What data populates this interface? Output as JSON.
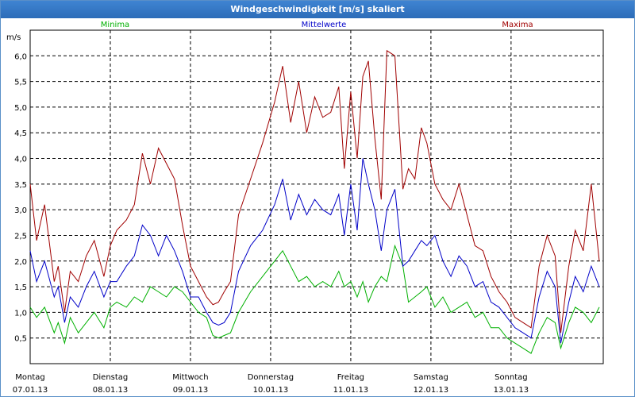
{
  "window": {
    "title": "Windgeschwindigkeit [m/s] skaliert"
  },
  "colors": {
    "min": "#00b000",
    "mean": "#0000c8",
    "max": "#a00000",
    "grid": "#000000",
    "title_bar": "#2f74c4"
  },
  "chart_data": {
    "type": "line",
    "title": "Windgeschwindigkeit [m/s] skaliert",
    "ylabel": "m/s",
    "ylim": [
      0,
      6.5
    ],
    "yticks": [
      "0,5",
      "1,0",
      "1,5",
      "2,0",
      "2,5",
      "3,0",
      "3,5",
      "4,0",
      "4,5",
      "5,0",
      "5,5",
      "6,0"
    ],
    "xlim": [
      0,
      7.15
    ],
    "days": [
      {
        "weekday": "Montag",
        "date": "07.01.13"
      },
      {
        "weekday": "Dienstag",
        "date": "08.01.13"
      },
      {
        "weekday": "Mittwoch",
        "date": "09.01.13"
      },
      {
        "weekday": "Donnerstag",
        "date": "10.01.13"
      },
      {
        "weekday": "Freitag",
        "date": "11.01.13"
      },
      {
        "weekday": "Samstag",
        "date": "12.01.13"
      },
      {
        "weekday": "Sonntag",
        "date": "13.01.13"
      }
    ],
    "grid": true,
    "legend_position": "top",
    "series": [
      {
        "name": "Minima",
        "color_key": "min",
        "points": [
          [
            0.0,
            1.1
          ],
          [
            0.08,
            0.9
          ],
          [
            0.18,
            1.1
          ],
          [
            0.3,
            0.6
          ],
          [
            0.35,
            0.8
          ],
          [
            0.43,
            0.4
          ],
          [
            0.5,
            0.9
          ],
          [
            0.6,
            0.6
          ],
          [
            0.7,
            0.8
          ],
          [
            0.8,
            1.0
          ],
          [
            0.92,
            0.7
          ],
          [
            1.0,
            1.1
          ],
          [
            1.08,
            1.2
          ],
          [
            1.2,
            1.1
          ],
          [
            1.3,
            1.3
          ],
          [
            1.4,
            1.2
          ],
          [
            1.5,
            1.5
          ],
          [
            1.6,
            1.4
          ],
          [
            1.7,
            1.3
          ],
          [
            1.8,
            1.5
          ],
          [
            1.9,
            1.4
          ],
          [
            2.0,
            1.2
          ],
          [
            2.1,
            1.0
          ],
          [
            2.2,
            0.9
          ],
          [
            2.28,
            0.55
          ],
          [
            2.35,
            0.5
          ],
          [
            2.42,
            0.55
          ],
          [
            2.5,
            0.6
          ],
          [
            2.6,
            1.0
          ],
          [
            2.75,
            1.4
          ],
          [
            2.9,
            1.7
          ],
          [
            3.05,
            2.0
          ],
          [
            3.15,
            2.2
          ],
          [
            3.25,
            1.9
          ],
          [
            3.35,
            1.6
          ],
          [
            3.45,
            1.7
          ],
          [
            3.55,
            1.5
          ],
          [
            3.65,
            1.6
          ],
          [
            3.75,
            1.5
          ],
          [
            3.85,
            1.8
          ],
          [
            3.92,
            1.5
          ],
          [
            4.0,
            1.6
          ],
          [
            4.08,
            1.3
          ],
          [
            4.15,
            1.6
          ],
          [
            4.22,
            1.2
          ],
          [
            4.3,
            1.5
          ],
          [
            4.38,
            1.7
          ],
          [
            4.45,
            1.6
          ],
          [
            4.55,
            2.3
          ],
          [
            4.65,
            1.9
          ],
          [
            4.72,
            1.2
          ],
          [
            4.8,
            1.3
          ],
          [
            4.88,
            1.4
          ],
          [
            4.95,
            1.5
          ],
          [
            5.05,
            1.1
          ],
          [
            5.15,
            1.3
          ],
          [
            5.25,
            1.0
          ],
          [
            5.35,
            1.1
          ],
          [
            5.45,
            1.2
          ],
          [
            5.55,
            0.9
          ],
          [
            5.65,
            1.0
          ],
          [
            5.75,
            0.7
          ],
          [
            5.85,
            0.7
          ],
          [
            5.95,
            0.5
          ],
          [
            6.05,
            0.4
          ],
          [
            6.15,
            0.3
          ],
          [
            6.25,
            0.2
          ],
          [
            6.35,
            0.6
          ],
          [
            6.45,
            0.9
          ],
          [
            6.55,
            0.8
          ],
          [
            6.62,
            0.3
          ],
          [
            6.72,
            0.8
          ],
          [
            6.8,
            1.1
          ],
          [
            6.9,
            1.0
          ],
          [
            7.0,
            0.8
          ],
          [
            7.1,
            1.1
          ]
        ]
      },
      {
        "name": "Mittelwerte",
        "color_key": "mean",
        "points": [
          [
            0.0,
            2.2
          ],
          [
            0.08,
            1.6
          ],
          [
            0.18,
            2.0
          ],
          [
            0.3,
            1.3
          ],
          [
            0.35,
            1.5
          ],
          [
            0.43,
            0.8
          ],
          [
            0.5,
            1.3
          ],
          [
            0.6,
            1.1
          ],
          [
            0.7,
            1.5
          ],
          [
            0.8,
            1.8
          ],
          [
            0.92,
            1.3
          ],
          [
            1.0,
            1.6
          ],
          [
            1.08,
            1.6
          ],
          [
            1.2,
            1.9
          ],
          [
            1.3,
            2.1
          ],
          [
            1.4,
            2.7
          ],
          [
            1.5,
            2.5
          ],
          [
            1.6,
            2.1
          ],
          [
            1.7,
            2.5
          ],
          [
            1.8,
            2.2
          ],
          [
            1.9,
            1.8
          ],
          [
            2.0,
            1.3
          ],
          [
            2.1,
            1.3
          ],
          [
            2.2,
            1.0
          ],
          [
            2.28,
            0.8
          ],
          [
            2.35,
            0.75
          ],
          [
            2.42,
            0.8
          ],
          [
            2.5,
            1.0
          ],
          [
            2.6,
            1.8
          ],
          [
            2.75,
            2.3
          ],
          [
            2.9,
            2.6
          ],
          [
            3.05,
            3.1
          ],
          [
            3.15,
            3.6
          ],
          [
            3.25,
            2.8
          ],
          [
            3.35,
            3.3
          ],
          [
            3.45,
            2.9
          ],
          [
            3.55,
            3.2
          ],
          [
            3.65,
            3.0
          ],
          [
            3.75,
            2.9
          ],
          [
            3.85,
            3.3
          ],
          [
            3.92,
            2.5
          ],
          [
            4.0,
            3.5
          ],
          [
            4.08,
            2.6
          ],
          [
            4.15,
            4.0
          ],
          [
            4.22,
            3.5
          ],
          [
            4.3,
            3.0
          ],
          [
            4.38,
            2.2
          ],
          [
            4.45,
            3.0
          ],
          [
            4.55,
            3.4
          ],
          [
            4.65,
            1.9
          ],
          [
            4.72,
            2.0
          ],
          [
            4.8,
            2.2
          ],
          [
            4.88,
            2.4
          ],
          [
            4.95,
            2.3
          ],
          [
            5.05,
            2.5
          ],
          [
            5.15,
            2.0
          ],
          [
            5.25,
            1.7
          ],
          [
            5.35,
            2.1
          ],
          [
            5.45,
            1.9
          ],
          [
            5.55,
            1.5
          ],
          [
            5.65,
            1.6
          ],
          [
            5.75,
            1.2
          ],
          [
            5.85,
            1.1
          ],
          [
            5.95,
            0.9
          ],
          [
            6.05,
            0.7
          ],
          [
            6.15,
            0.6
          ],
          [
            6.25,
            0.5
          ],
          [
            6.35,
            1.3
          ],
          [
            6.45,
            1.8
          ],
          [
            6.55,
            1.5
          ],
          [
            6.62,
            0.4
          ],
          [
            6.72,
            1.2
          ],
          [
            6.8,
            1.7
          ],
          [
            6.9,
            1.4
          ],
          [
            7.0,
            1.9
          ],
          [
            7.1,
            1.5
          ]
        ]
      },
      {
        "name": "Maxima",
        "color_key": "max",
        "points": [
          [
            0.0,
            3.5
          ],
          [
            0.08,
            2.4
          ],
          [
            0.18,
            3.1
          ],
          [
            0.3,
            1.6
          ],
          [
            0.35,
            1.9
          ],
          [
            0.43,
            1.0
          ],
          [
            0.5,
            1.8
          ],
          [
            0.6,
            1.6
          ],
          [
            0.7,
            2.1
          ],
          [
            0.8,
            2.4
          ],
          [
            0.92,
            1.7
          ],
          [
            1.0,
            2.3
          ],
          [
            1.08,
            2.6
          ],
          [
            1.2,
            2.8
          ],
          [
            1.3,
            3.1
          ],
          [
            1.4,
            4.1
          ],
          [
            1.5,
            3.5
          ],
          [
            1.6,
            4.2
          ],
          [
            1.7,
            3.9
          ],
          [
            1.8,
            3.6
          ],
          [
            1.9,
            2.7
          ],
          [
            2.0,
            1.9
          ],
          [
            2.1,
            1.6
          ],
          [
            2.2,
            1.3
          ],
          [
            2.28,
            1.15
          ],
          [
            2.35,
            1.2
          ],
          [
            2.42,
            1.4
          ],
          [
            2.5,
            1.6
          ],
          [
            2.6,
            2.9
          ],
          [
            2.75,
            3.6
          ],
          [
            2.9,
            4.3
          ],
          [
            3.05,
            5.1
          ],
          [
            3.15,
            5.8
          ],
          [
            3.25,
            4.7
          ],
          [
            3.35,
            5.5
          ],
          [
            3.45,
            4.5
          ],
          [
            3.55,
            5.2
          ],
          [
            3.65,
            4.8
          ],
          [
            3.75,
            4.9
          ],
          [
            3.85,
            5.4
          ],
          [
            3.92,
            3.8
          ],
          [
            4.0,
            5.3
          ],
          [
            4.08,
            4.0
          ],
          [
            4.15,
            5.6
          ],
          [
            4.22,
            5.9
          ],
          [
            4.3,
            4.4
          ],
          [
            4.38,
            3.2
          ],
          [
            4.45,
            6.1
          ],
          [
            4.55,
            6.0
          ],
          [
            4.65,
            3.4
          ],
          [
            4.72,
            3.8
          ],
          [
            4.8,
            3.6
          ],
          [
            4.88,
            4.6
          ],
          [
            4.95,
            4.3
          ],
          [
            5.05,
            3.5
          ],
          [
            5.15,
            3.2
          ],
          [
            5.25,
            3.0
          ],
          [
            5.35,
            3.5
          ],
          [
            5.45,
            2.9
          ],
          [
            5.55,
            2.3
          ],
          [
            5.65,
            2.2
          ],
          [
            5.75,
            1.7
          ],
          [
            5.85,
            1.4
          ],
          [
            5.95,
            1.2
          ],
          [
            6.05,
            0.9
          ],
          [
            6.15,
            0.8
          ],
          [
            6.25,
            0.7
          ],
          [
            6.35,
            1.9
          ],
          [
            6.45,
            2.5
          ],
          [
            6.55,
            2.1
          ],
          [
            6.62,
            0.6
          ],
          [
            6.72,
            1.9
          ],
          [
            6.8,
            2.6
          ],
          [
            6.9,
            2.2
          ],
          [
            7.0,
            3.5
          ],
          [
            7.1,
            2.0
          ]
        ]
      }
    ]
  }
}
